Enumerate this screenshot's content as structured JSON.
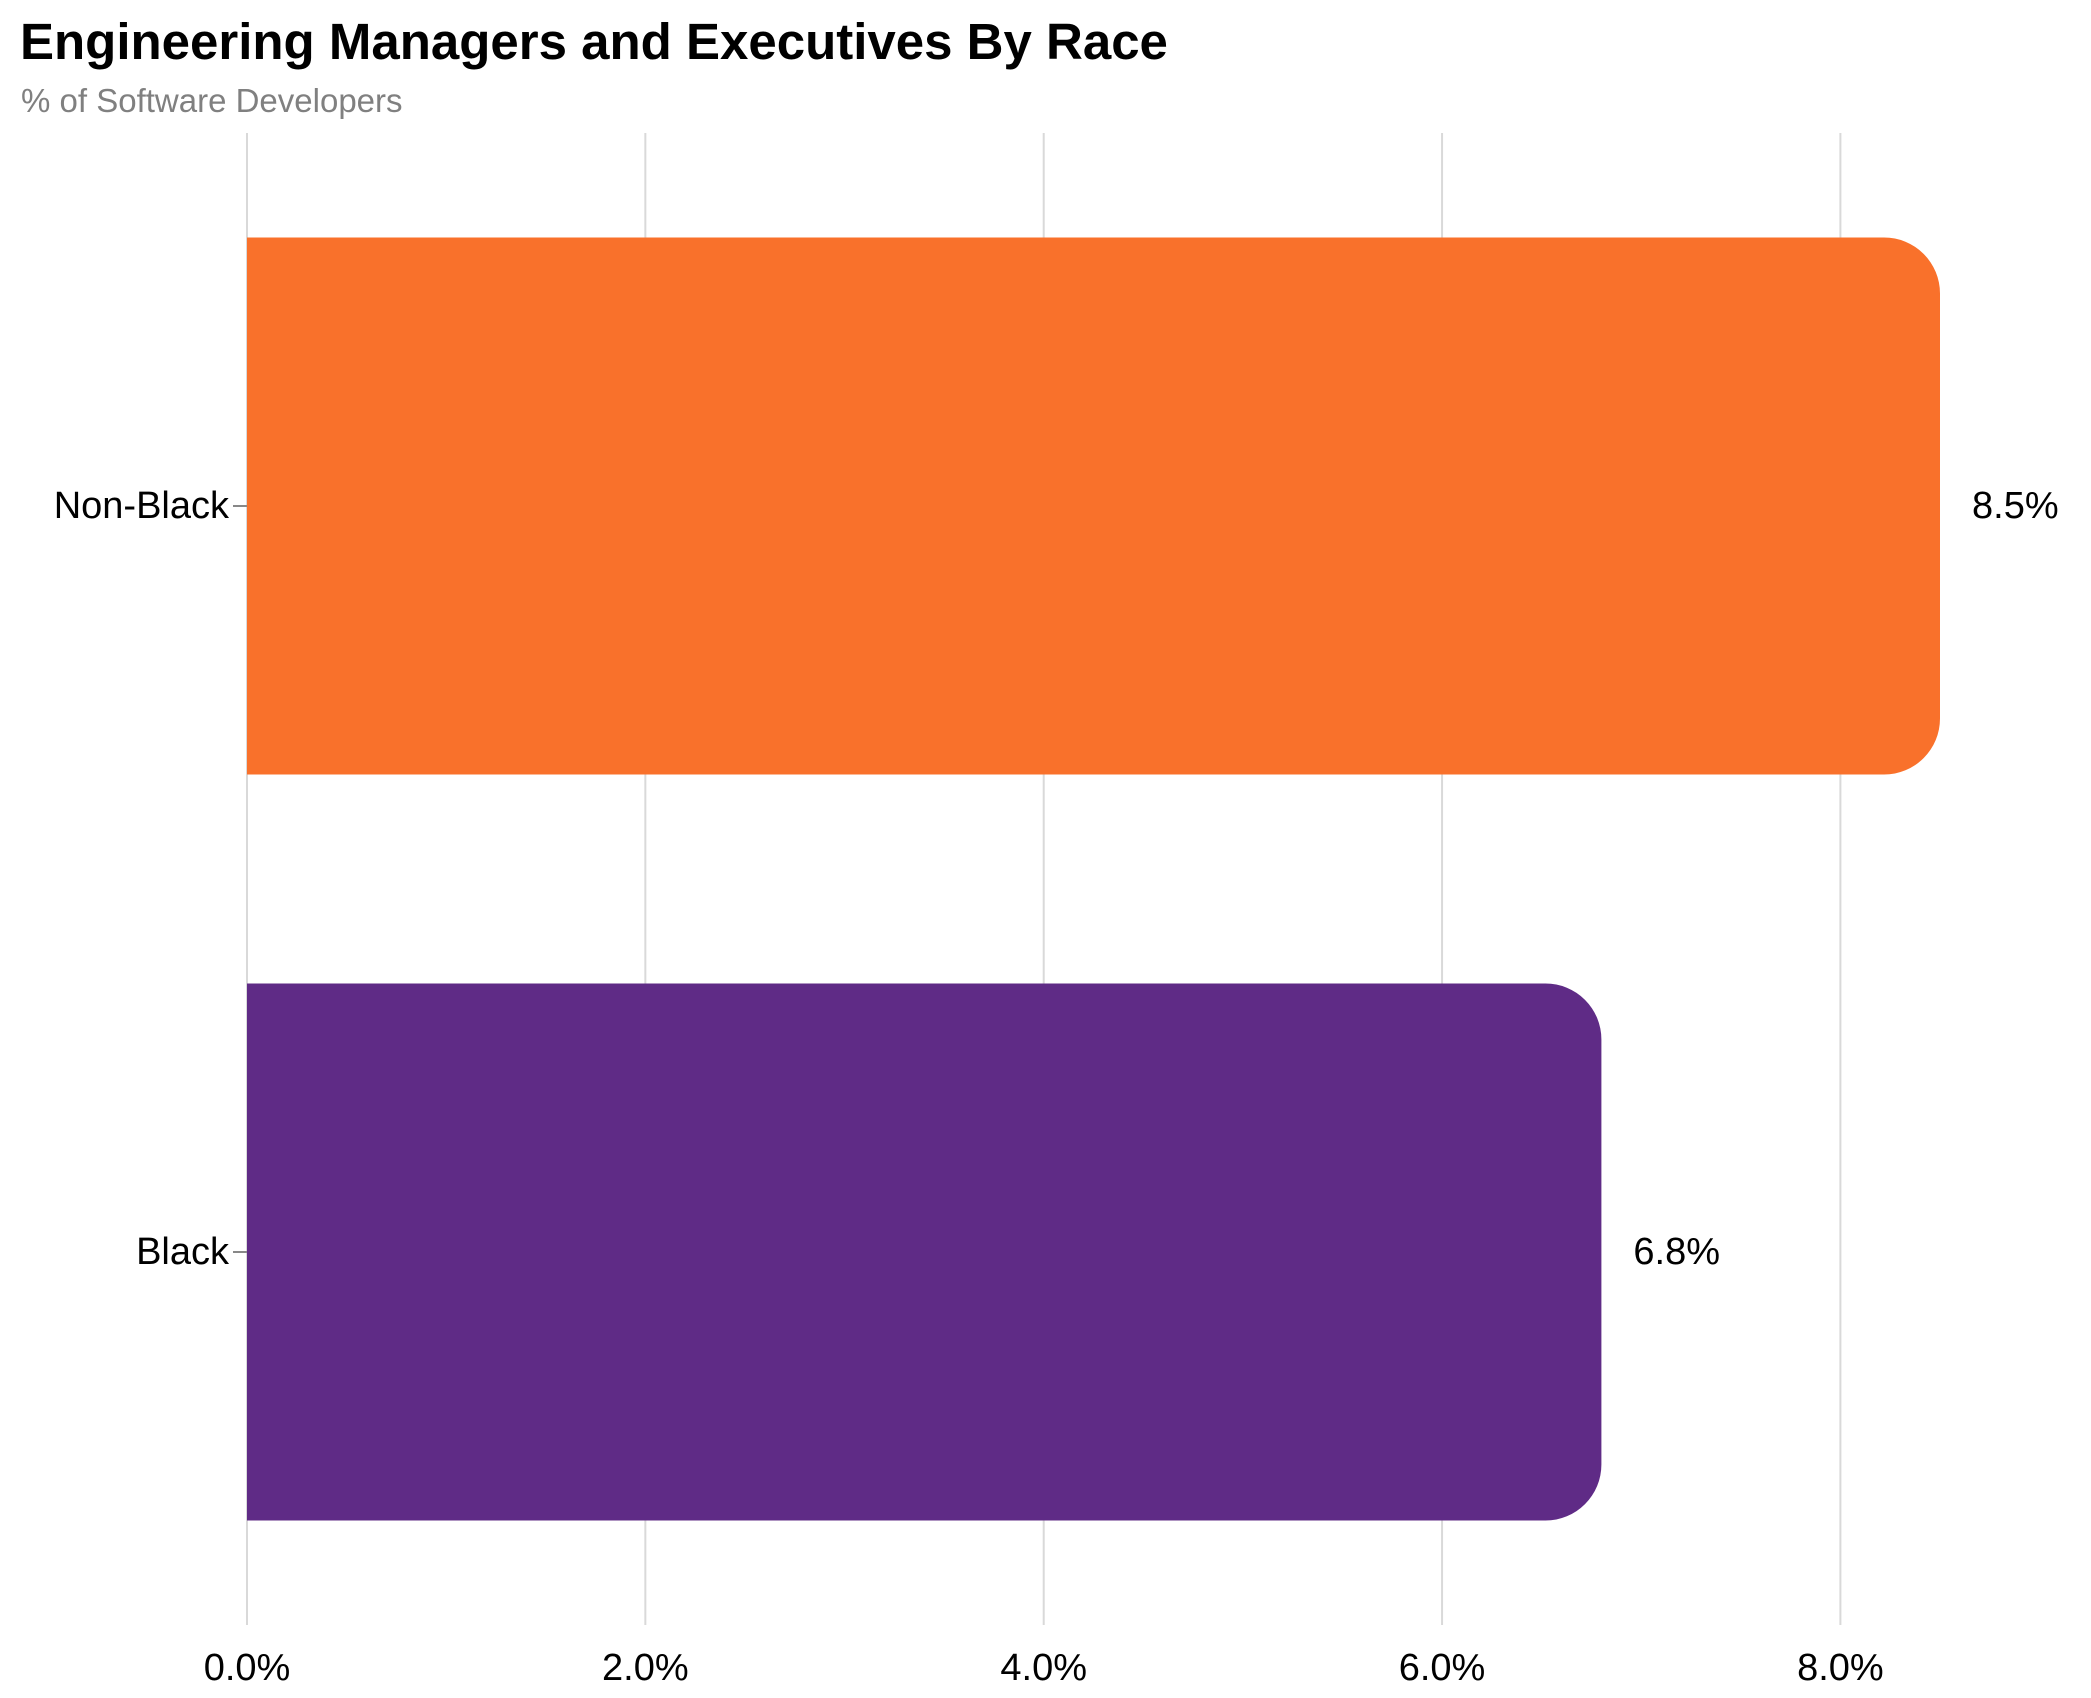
{
  "title": "Engineering Managers and Executives By Race",
  "subtitle": "% of Software Developers",
  "chart_data": {
    "type": "bar",
    "orientation": "horizontal",
    "title": "Engineering Managers and Executives By Race",
    "subtitle": "% of Software Developers",
    "xlabel": "",
    "ylabel": "",
    "categories": [
      "Non-Black",
      "Black"
    ],
    "values": [
      8.5,
      6.8
    ],
    "value_labels": [
      "8.5%",
      "6.8%"
    ],
    "colors": [
      "#f9712b",
      "#5f2b86"
    ],
    "xlim": [
      0,
      8.5
    ],
    "x_ticks": [
      0,
      2,
      4,
      6,
      8
    ],
    "x_tick_labels": [
      "0.0%",
      "2.0%",
      "4.0%",
      "6.0%",
      "8.0%"
    ],
    "grid": "vertical",
    "grid_color": "#d9d9d9",
    "legend": "none"
  }
}
